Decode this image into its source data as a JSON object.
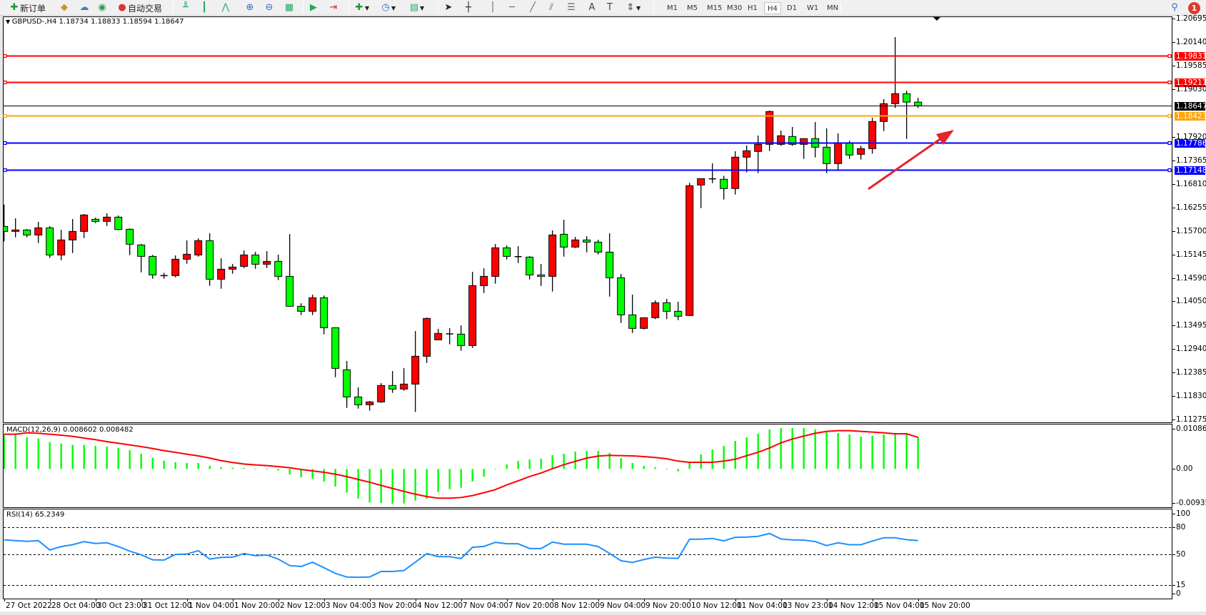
{
  "toolbar": {
    "new_order_label": "新订单",
    "auto_trading_label": "自动交易",
    "timeframes": [
      "M1",
      "M5",
      "M15",
      "M30",
      "H1",
      "H4",
      "D1",
      "W1",
      "MN"
    ],
    "active_timeframe": "H4",
    "notification_count": "1",
    "icons": [
      "new-order-icon",
      "expert-icon",
      "cloud-icon",
      "signal-icon",
      "auto-trading-icon",
      "bar-chart-icon",
      "candlestick-chart-icon",
      "line-chart-icon",
      "zoom-in-icon",
      "zoom-out-icon",
      "tile-windows-icon",
      "auto-scroll-icon",
      "chart-shift-icon",
      "indicators-icon",
      "periods-icon",
      "templates-icon",
      "cursor-icon",
      "crosshair-icon",
      "vertical-line-icon",
      "horizontal-line-icon",
      "trendline-icon",
      "equidistant-channel-icon",
      "fibonacci-icon",
      "text-icon",
      "text-label-icon",
      "arrows-icon",
      "search-icon",
      "chat-icon"
    ]
  },
  "chart": {
    "symbol_header": "GBPUSD-,H4  1.18734 1.18833 1.18594 1.18647",
    "up_color": "#ff0000",
    "down_color": "#00ff00",
    "levels": [
      {
        "price": "1.19831",
        "color": "#ff0000"
      },
      {
        "price": "1.19211",
        "color": "#ff0000"
      },
      {
        "price": "1.18647",
        "color": "#000000"
      },
      {
        "price": "1.18423",
        "color": "#ffa500"
      },
      {
        "price": "1.17786",
        "color": "#0000ff"
      },
      {
        "price": "1.17148",
        "color": "#0000ff"
      }
    ],
    "annotation": {
      "type": "arrow",
      "color": "#e8232a",
      "direction": "up-right"
    }
  },
  "price_axis": {
    "ticks": [
      "1.20695",
      "1.20140",
      "1.19585",
      "1.19030",
      "1.17920",
      "1.17365",
      "1.16810",
      "1.16255",
      "1.15700",
      "1.15145",
      "1.14590",
      "1.14050",
      "1.13495",
      "1.12940",
      "1.12385",
      "1.11830",
      "1.11275"
    ]
  },
  "macd": {
    "title": "MACD(12,26,9) 0.008602 0.008482",
    "axis": [
      "0.010864",
      "0.00",
      "-0.009358"
    ],
    "hist_color": "#00ff00",
    "signal_color": "#ff0000"
  },
  "rsi": {
    "title": "RSI(14) 65.2349",
    "axis": [
      "100",
      "80",
      "50",
      "15",
      "0"
    ],
    "line_color": "#1e90ff"
  },
  "chart_data": [
    {
      "type": "candlestick",
      "title": "GBPUSD-,H4",
      "ohlc": [
        [
          1.15812,
          1.16326,
          1.1546,
          1.15695
        ],
        [
          1.15695,
          1.16002,
          1.15555,
          1.15728
        ],
        [
          1.15728,
          1.15751,
          1.15555,
          1.15611
        ],
        [
          1.15611,
          1.15918,
          1.15421,
          1.15779
        ],
        [
          1.15779,
          1.15818,
          1.15069,
          1.15141
        ],
        [
          1.15141,
          1.15734,
          1.15018,
          1.15494
        ],
        [
          1.15494,
          1.15986,
          1.15186,
          1.15695
        ],
        [
          1.15695,
          1.16103,
          1.15538,
          1.16081
        ],
        [
          1.1598,
          1.16019,
          1.1589,
          1.1593
        ],
        [
          1.1593,
          1.1612,
          1.15823,
          1.1603
        ],
        [
          1.1603,
          1.16069,
          1.15723,
          1.1574
        ],
        [
          1.15745,
          1.15767,
          1.15136,
          1.15393
        ],
        [
          1.15376,
          1.15399,
          1.14733,
          1.15108
        ],
        [
          1.15108,
          1.15141,
          1.14582,
          1.14672
        ],
        [
          1.14655,
          1.14722,
          1.14582,
          1.1465
        ],
        [
          1.14655,
          1.1513,
          1.14616,
          1.15041
        ],
        [
          1.15041,
          1.15482,
          1.14935,
          1.15158
        ],
        [
          1.15141,
          1.15533,
          1.15102,
          1.15477
        ],
        [
          1.15477,
          1.1565,
          1.14415,
          1.14571
        ],
        [
          1.14571,
          1.15063,
          1.14348,
          1.14806
        ],
        [
          1.14806,
          1.14929,
          1.147,
          1.14856
        ],
        [
          1.14873,
          1.15248,
          1.14834,
          1.15141
        ],
        [
          1.15141,
          1.15214,
          1.14817,
          1.14923
        ],
        [
          1.14923,
          1.15231,
          1.14834,
          1.1499
        ],
        [
          1.1499,
          1.15147,
          1.14549,
          1.14638
        ],
        [
          1.14638,
          1.15633,
          1.13934,
          1.13934
        ],
        [
          1.13934,
          1.14007,
          1.13727,
          1.13817
        ],
        [
          1.13817,
          1.14208,
          1.13727,
          1.14135
        ],
        [
          1.14135,
          1.14186,
          1.13274,
          1.13431
        ],
        [
          1.13431,
          1.13431,
          1.12268,
          1.12475
        ],
        [
          1.12441,
          1.12648,
          1.11547,
          1.11804
        ],
        [
          1.11804,
          1.12028,
          1.1153,
          1.1162
        ],
        [
          1.1162,
          1.11709,
          1.1148,
          1.11687
        ],
        [
          1.11687,
          1.12128,
          1.11664,
          1.12073
        ],
        [
          1.12073,
          1.12413,
          1.11899,
          1.11989
        ],
        [
          1.11989,
          1.12481,
          1.1195,
          1.12106
        ],
        [
          1.12106,
          1.13353,
          1.11452,
          1.1276
        ],
        [
          1.1276,
          1.13671,
          1.12604,
          1.13649
        ],
        [
          1.13146,
          1.13403,
          1.13146,
          1.13297
        ],
        [
          1.13286,
          1.1342,
          1.1304,
          1.1328
        ],
        [
          1.1328,
          1.13487,
          1.12889,
          1.13012
        ],
        [
          1.13012,
          1.14745,
          1.12956,
          1.1442
        ],
        [
          1.1442,
          1.14828,
          1.14247,
          1.14638
        ],
        [
          1.14638,
          1.15399,
          1.14465,
          1.15309
        ],
        [
          1.15309,
          1.15365,
          1.15035,
          1.15108
        ],
        [
          1.15102,
          1.15348,
          1.14951,
          1.151
        ],
        [
          1.15091,
          1.15113,
          1.14566,
          1.14672
        ],
        [
          1.14672,
          1.14929,
          1.14415,
          1.14638
        ],
        [
          1.14638,
          1.15717,
          1.14281,
          1.15611
        ],
        [
          1.15628,
          1.15969,
          1.15102,
          1.15326
        ],
        [
          1.15326,
          1.15566,
          1.15304,
          1.15494
        ],
        [
          1.15494,
          1.15583,
          1.15203,
          1.15443
        ],
        [
          1.15443,
          1.15499,
          1.15153,
          1.15208
        ],
        [
          1.15208,
          1.1565,
          1.14163,
          1.14605
        ],
        [
          1.14605,
          1.14694,
          1.13543,
          1.13733
        ],
        [
          1.13733,
          1.14208,
          1.13308,
          1.13415
        ],
        [
          1.13415,
          1.13666,
          1.13392,
          1.13666
        ],
        [
          1.13666,
          1.14074,
          1.13633,
          1.14018
        ],
        [
          1.14018,
          1.14108,
          1.13633,
          1.13817
        ],
        [
          1.13817,
          1.14041,
          1.1361,
          1.137
        ],
        [
          1.13717,
          1.16836,
          1.13717,
          1.16769
        ],
        [
          1.16785,
          1.16936,
          1.16243,
          1.16936
        ],
        [
          1.16931,
          1.17294,
          1.1683,
          1.16928
        ],
        [
          1.1692,
          1.17003,
          1.16444,
          1.16702
        ],
        [
          1.16702,
          1.17579,
          1.16562,
          1.1744
        ],
        [
          1.1744,
          1.17713,
          1.17082,
          1.1759
        ],
        [
          1.17574,
          1.17948,
          1.17065,
          1.17741
        ],
        [
          1.17741,
          1.18535,
          1.17585,
          1.18513
        ],
        [
          1.17741,
          1.18066,
          1.17708,
          1.17943
        ],
        [
          1.17926,
          1.18149,
          1.17708,
          1.17741
        ],
        [
          1.17741,
          1.17876,
          1.174,
          1.17876
        ],
        [
          1.17876,
          1.18267,
          1.17434,
          1.17674
        ],
        [
          1.17674,
          1.18116,
          1.17065,
          1.17289
        ],
        [
          1.17289,
          1.17999,
          1.17115,
          1.17775
        ],
        [
          1.17775,
          1.17825,
          1.174,
          1.1749
        ],
        [
          1.17507,
          1.17708,
          1.17384,
          1.17641
        ],
        [
          1.17641,
          1.18367,
          1.17523,
          1.18278
        ],
        [
          1.18278,
          1.18803,
          1.18054,
          1.18697
        ],
        [
          1.18697,
          1.20262,
          1.18596,
          1.18932
        ],
        [
          1.18932,
          1.19004,
          1.1787,
          1.18734
        ],
        [
          1.18734,
          1.18833,
          1.18594,
          1.18647
        ]
      ],
      "ylim": [
        1.11275,
        1.20695
      ],
      "time_labels": [
        "27 Oct 2022",
        "28 Oct 04:00",
        "30 Oct 23:00",
        "31 Oct 12:00",
        "1 Nov 04:00",
        "1 Nov 20:00",
        "2 Nov 12:00",
        "3 Nov 04:00",
        "3 Nov 20:00",
        "4 Nov 12:00",
        "7 Nov 04:00",
        "7 Nov 20:00",
        "8 Nov 12:00",
        "9 Nov 04:00",
        "9 Nov 20:00",
        "10 Nov 12:00",
        "11 Nov 04:00",
        "13 Nov 23:00",
        "14 Nov 12:00",
        "15 Nov 04:00",
        "15 Nov 20:00"
      ],
      "grid": false
    },
    {
      "type": "bar",
      "title": "MACD(12,26,9)",
      "ylim": [
        -0.009358,
        0.010864
      ],
      "series": [
        {
          "values": [
            0.00934,
            0.00934,
            0.00858,
            0.00819,
            0.00723,
            0.00685,
            0.00646,
            0.00646,
            0.00621,
            0.00602,
            0.0057,
            0.00506,
            0.0041,
            0.00301,
            0.00224,
            0.00179,
            0.0016,
            0.0016,
            0.00083,
            0.00045,
            0.00032,
            0.00026,
            6e-05,
            2e-05,
            -0.00045,
            -0.00147,
            -0.00224,
            -0.00262,
            -0.00339,
            -0.00474,
            -0.0064,
            -0.00794,
            -0.00902,
            -0.00915,
            -0.00934,
            -0.00928,
            -0.00851,
            -0.008,
            -0.00621,
            -0.00544,
            -0.00506,
            -0.00339,
            -0.00205,
            6e-05,
            0.00122,
            0.00218,
            0.00256,
            0.00275,
            0.00371,
            0.0041,
            0.00467,
            0.00486,
            0.00486,
            0.00429,
            0.00294,
            0.0016,
            0.00083,
            0.00045,
            6e-05,
            -0.00064,
            0.0016,
            0.0039,
            0.00525,
            0.00621,
            0.00755,
            0.00851,
            0.00947,
            0.01062,
            0.01101,
            0.01101,
            0.01101,
            0.01062,
            0.00986,
            0.00966,
            0.00928,
            0.0087,
            0.0089,
            0.00928,
            0.00947,
            0.00928,
            0.008602
          ]
        },
        {
          "type": "line",
          "values": [
            0.00934,
            0.00934,
            0.00973,
            0.0096,
            0.00934,
            0.00909,
            0.00877,
            0.00832,
            0.00787,
            0.00736,
            0.00691,
            0.00646,
            0.00602,
            0.0055,
            0.00493,
            0.00448,
            0.00397,
            0.00352,
            0.00294,
            0.00224,
            0.00173,
            0.00134,
            0.00109,
            0.0009,
            0.00064,
            0.00032,
            -0.00013,
            -0.00051,
            -0.0009,
            -0.00141,
            -0.00205,
            -0.00282,
            -0.00358,
            -0.00442,
            -0.00525,
            -0.00602,
            -0.00678,
            -0.00742,
            -0.00787,
            -0.00787,
            -0.00768,
            -0.00717,
            -0.0064,
            -0.00557,
            -0.0043,
            -0.0032,
            -0.00205,
            -0.00109,
            6e-05,
            0.00115,
            0.00205,
            0.00294,
            0.00346,
            0.00365,
            0.00358,
            0.00352,
            0.00333,
            0.00307,
            0.00275,
            0.00211,
            0.00179,
            0.00179,
            0.00179,
            0.00211,
            0.00262,
            0.00358,
            0.00448,
            0.00563,
            0.00704,
            0.00806,
            0.00883,
            0.0096,
            0.01011,
            0.0103,
            0.0103,
            0.01011,
            0.00992,
            0.00973,
            0.00947,
            0.00947,
            0.008482
          ]
        }
      ]
    },
    {
      "type": "line",
      "title": "RSI(14)",
      "ylim": [
        0,
        100
      ],
      "levels": [
        80,
        50,
        15
      ],
      "values": [
        66,
        65.1,
        64.3,
        65.1,
        54.6,
        58.4,
        60.5,
        64,
        61.9,
        62.7,
        58.4,
        53.2,
        49.2,
        43.5,
        43.2,
        49.5,
        50,
        53.8,
        44.3,
        46.2,
        46.5,
        50.5,
        48.1,
        48.9,
        44.3,
        37,
        35.9,
        40.8,
        34.6,
        28.1,
        24.1,
        23.8,
        24.1,
        30.3,
        30.3,
        31.4,
        40.8,
        50.5,
        47,
        47,
        44.9,
        57.6,
        58.6,
        63.2,
        61.6,
        61.6,
        56.2,
        56.2,
        63.5,
        61.1,
        61.1,
        61.1,
        58.4,
        50.8,
        42.4,
        40.5,
        43.8,
        46.5,
        45.4,
        45.1,
        66.8,
        66.8,
        67.6,
        64.9,
        68.9,
        69.2,
        70,
        73.2,
        67,
        65.9,
        65.7,
        64.1,
        59.5,
        62.7,
        60.5,
        60.5,
        64.6,
        68.4,
        68.4,
        66.2,
        65.2349
      ]
    }
  ]
}
